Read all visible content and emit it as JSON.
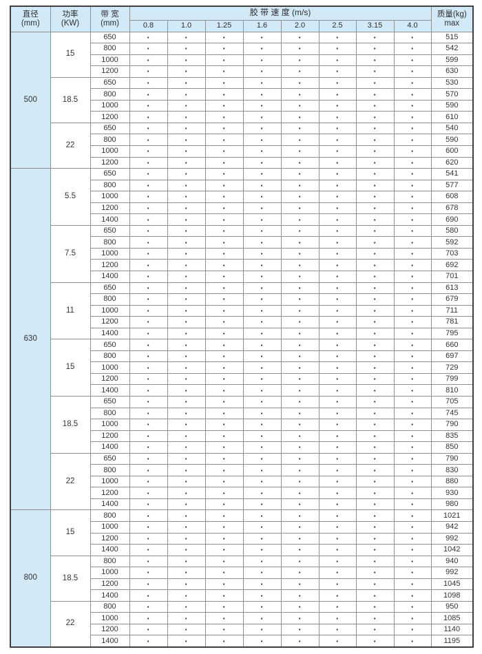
{
  "table": {
    "header": {
      "diameter_line1": "直径",
      "diameter_line2": "(mm)",
      "power_line1": "功率",
      "power_line2": "(KW)",
      "width_line1": "带 宽",
      "width_line2": "(mm)",
      "speed_title": "胶 带 速 度 (m/s)",
      "speeds": [
        "0.8",
        "1.0",
        "1.25",
        "1.6",
        "2.0",
        "2.5",
        "3.15",
        "4.0"
      ],
      "mass_line1": "质量(kg)",
      "mass_line2": "max"
    },
    "dot": "·",
    "sections": [
      {
        "diameter": "500",
        "groups": [
          {
            "power": "15",
            "rows": [
              {
                "width": "650",
                "max": "515"
              },
              {
                "width": "800",
                "max": "542"
              },
              {
                "width": "1000",
                "max": "599"
              },
              {
                "width": "1200",
                "max": "630"
              }
            ]
          },
          {
            "power": "18.5",
            "rows": [
              {
                "width": "650",
                "max": "530"
              },
              {
                "width": "800",
                "max": "570"
              },
              {
                "width": "1000",
                "max": "590"
              },
              {
                "width": "1200",
                "max": "610"
              }
            ]
          },
          {
            "power": "22",
            "rows": [
              {
                "width": "650",
                "max": "540"
              },
              {
                "width": "800",
                "max": "590"
              },
              {
                "width": "1000",
                "max": "600"
              },
              {
                "width": "1200",
                "max": "620"
              }
            ]
          }
        ]
      },
      {
        "diameter": "630",
        "groups": [
          {
            "power": "5.5",
            "rows": [
              {
                "width": "650",
                "max": "541"
              },
              {
                "width": "800",
                "max": "577"
              },
              {
                "width": "1000",
                "max": "608"
              },
              {
                "width": "1200",
                "max": "678"
              },
              {
                "width": "1400",
                "max": "690"
              }
            ]
          },
          {
            "power": "7.5",
            "rows": [
              {
                "width": "650",
                "max": "580"
              },
              {
                "width": "800",
                "max": "592"
              },
              {
                "width": "1000",
                "max": "703"
              },
              {
                "width": "1200",
                "max": "692"
              },
              {
                "width": "1400",
                "max": "701"
              }
            ]
          },
          {
            "power": "11",
            "rows": [
              {
                "width": "650",
                "max": "613"
              },
              {
                "width": "800",
                "max": "679"
              },
              {
                "width": "1000",
                "max": "711"
              },
              {
                "width": "1200",
                "max": "781"
              },
              {
                "width": "1400",
                "max": "795"
              }
            ]
          },
          {
            "power": "15",
            "rows": [
              {
                "width": "650",
                "max": "660"
              },
              {
                "width": "800",
                "max": "697"
              },
              {
                "width": "1000",
                "max": "729"
              },
              {
                "width": "1200",
                "max": "799"
              },
              {
                "width": "1400",
                "max": "810"
              }
            ]
          },
          {
            "power": "18.5",
            "rows": [
              {
                "width": "650",
                "max": "705"
              },
              {
                "width": "800",
                "max": "745"
              },
              {
                "width": "1000",
                "max": "790"
              },
              {
                "width": "1200",
                "max": "835"
              },
              {
                "width": "1400",
                "max": "850"
              }
            ]
          },
          {
            "power": "22",
            "rows": [
              {
                "width": "650",
                "max": "790"
              },
              {
                "width": "800",
                "max": "830"
              },
              {
                "width": "1000",
                "max": "880"
              },
              {
                "width": "1200",
                "max": "930"
              },
              {
                "width": "1400",
                "max": "980"
              }
            ]
          }
        ]
      },
      {
        "diameter": "800",
        "groups": [
          {
            "power": "15",
            "rows": [
              {
                "width": "800",
                "max": "1021"
              },
              {
                "width": "1000",
                "max": "942"
              },
              {
                "width": "1200",
                "max": "992"
              },
              {
                "width": "1400",
                "max": "1042"
              }
            ]
          },
          {
            "power": "18.5",
            "rows": [
              {
                "width": "800",
                "max": "940"
              },
              {
                "width": "1000",
                "max": "992"
              },
              {
                "width": "1200",
                "max": "1045"
              },
              {
                "width": "1400",
                "max": "1098"
              }
            ]
          },
          {
            "power": "22",
            "rows": [
              {
                "width": "800",
                "max": "950"
              },
              {
                "width": "1000",
                "max": "1085"
              },
              {
                "width": "1200",
                "max": "1140"
              },
              {
                "width": "1400",
                "max": "1195"
              }
            ]
          }
        ]
      }
    ]
  },
  "colors": {
    "header_bg": "#d2e9f7",
    "diameter_col_bg": "#d2e9f7",
    "grid_line": "#8f8f8f",
    "outer_border": "#3f3f3f",
    "text": "#333333"
  }
}
